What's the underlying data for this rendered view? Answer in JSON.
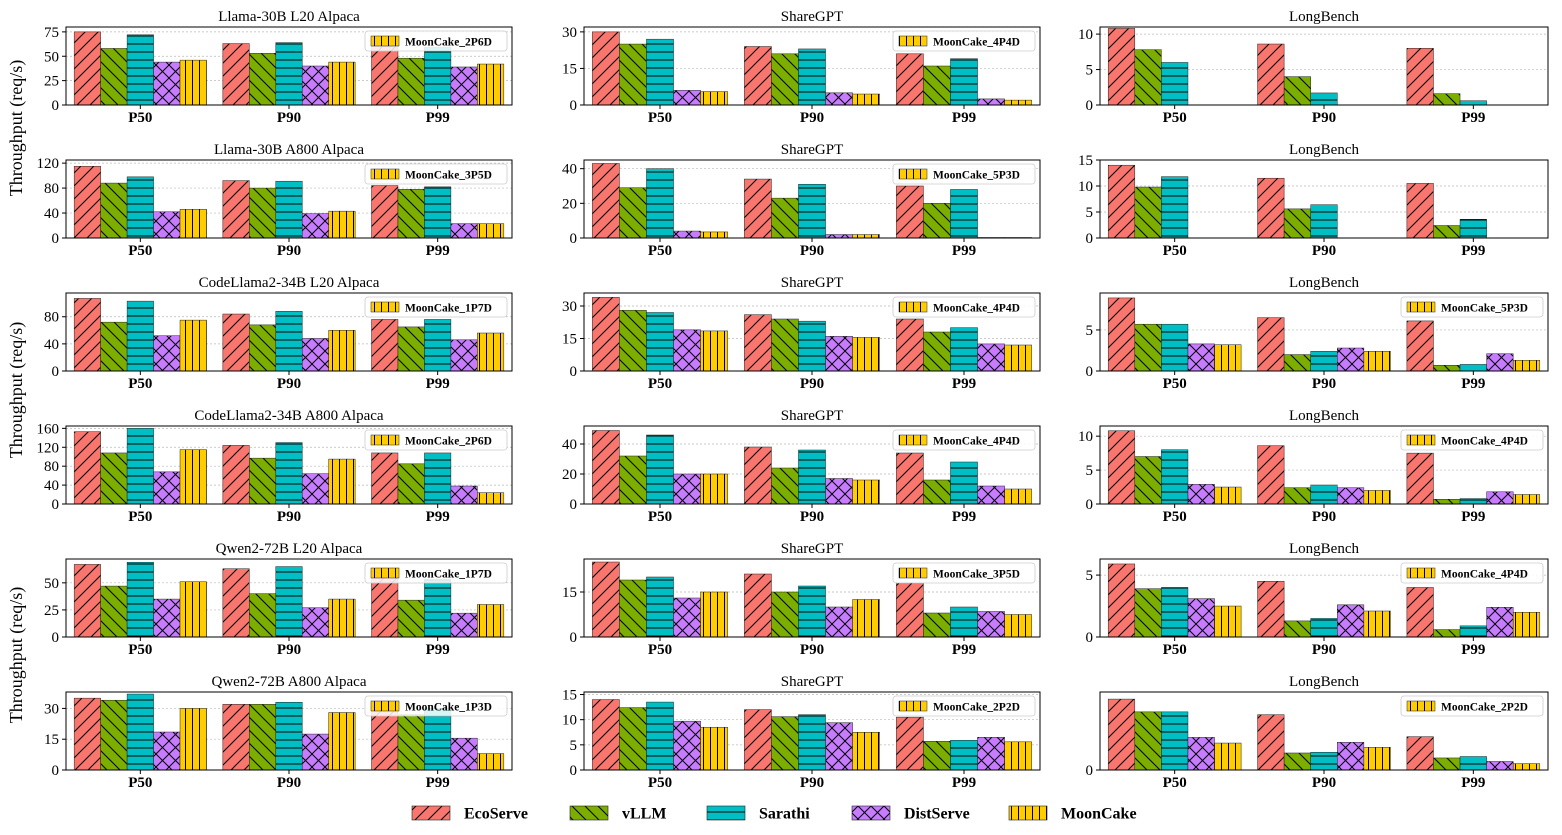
{
  "series_names": [
    "EcoServe",
    "vLLM",
    "Sarathi",
    "DistServe",
    "MoonCake"
  ],
  "colors": {
    "EcoServe": "#f8766d",
    "vLLM": "#7cae00",
    "Sarathi": "#00bfc4",
    "DistServe": "#c77cff",
    "MoonCake": "#ffcc00"
  },
  "ylabel": "Throughput (req/s)",
  "chart_data": [
    {
      "type": "bar",
      "title": "Llama-30B L20 Alpaca",
      "categories": [
        "P50",
        "P90",
        "P99"
      ],
      "ylim": [
        0,
        80
      ],
      "yticks": [
        0,
        25,
        50,
        75
      ],
      "legend": "MoonCake_2P6D",
      "series": [
        {
          "name": "EcoServe",
          "values": [
            75,
            63,
            60
          ]
        },
        {
          "name": "vLLM",
          "values": [
            58,
            53,
            48
          ]
        },
        {
          "name": "Sarathi",
          "values": [
            72,
            64,
            59
          ]
        },
        {
          "name": "DistServe",
          "values": [
            44,
            40,
            39
          ]
        },
        {
          "name": "MoonCake",
          "values": [
            46,
            44,
            42
          ]
        }
      ]
    },
    {
      "type": "bar",
      "title": "ShareGPT",
      "categories": [
        "P50",
        "P90",
        "P99"
      ],
      "ylim": [
        0,
        32
      ],
      "yticks": [
        0,
        15,
        30
      ],
      "legend": "MoonCake_4P4D",
      "series": [
        {
          "name": "EcoServe",
          "values": [
            30,
            24,
            21
          ]
        },
        {
          "name": "vLLM",
          "values": [
            25,
            21,
            16
          ]
        },
        {
          "name": "Sarathi",
          "values": [
            27,
            23,
            19
          ]
        },
        {
          "name": "DistServe",
          "values": [
            6,
            5,
            2.5
          ]
        },
        {
          "name": "MoonCake",
          "values": [
            5.5,
            4.5,
            2
          ]
        }
      ]
    },
    {
      "type": "bar",
      "title": "LongBench",
      "categories": [
        "P50",
        "P90",
        "P99"
      ],
      "ylim": [
        0,
        11
      ],
      "yticks": [
        0,
        5,
        10
      ],
      "legend": "",
      "series": [
        {
          "name": "EcoServe",
          "values": [
            10.8,
            8.6,
            8
          ]
        },
        {
          "name": "vLLM",
          "values": [
            7.8,
            4,
            1.6
          ]
        },
        {
          "name": "Sarathi",
          "values": [
            6,
            1.7,
            0.6
          ]
        },
        {
          "name": "DistServe",
          "values": [
            0,
            0,
            0
          ]
        },
        {
          "name": "MoonCake",
          "values": [
            0,
            0,
            0
          ]
        }
      ]
    },
    {
      "type": "bar",
      "title": "Llama-30B A800 Alpaca",
      "categories": [
        "P50",
        "P90",
        "P99"
      ],
      "ylim": [
        0,
        125
      ],
      "yticks": [
        0,
        40,
        80,
        120
      ],
      "legend": "MoonCake_3P5D",
      "series": [
        {
          "name": "EcoServe",
          "values": [
            115,
            92,
            84
          ]
        },
        {
          "name": "vLLM",
          "values": [
            88,
            80,
            78
          ]
        },
        {
          "name": "Sarathi",
          "values": [
            98,
            91,
            82
          ]
        },
        {
          "name": "DistServe",
          "values": [
            42,
            39,
            23
          ]
        },
        {
          "name": "MoonCake",
          "values": [
            46,
            43,
            23
          ]
        }
      ]
    },
    {
      "type": "bar",
      "title": "ShareGPT",
      "categories": [
        "P50",
        "P90",
        "P99"
      ],
      "ylim": [
        0,
        45
      ],
      "yticks": [
        0,
        20,
        40
      ],
      "legend": "MoonCake_5P3D",
      "series": [
        {
          "name": "EcoServe",
          "values": [
            43,
            34,
            30
          ]
        },
        {
          "name": "vLLM",
          "values": [
            29,
            23,
            20
          ]
        },
        {
          "name": "Sarathi",
          "values": [
            40,
            31,
            28
          ]
        },
        {
          "name": "DistServe",
          "values": [
            4,
            2,
            0.3
          ]
        },
        {
          "name": "MoonCake",
          "values": [
            3.5,
            2,
            0.3
          ]
        }
      ]
    },
    {
      "type": "bar",
      "title": "LongBench",
      "categories": [
        "P50",
        "P90",
        "P99"
      ],
      "ylim": [
        0,
        15
      ],
      "yticks": [
        0,
        5,
        10,
        15
      ],
      "legend": "",
      "series": [
        {
          "name": "EcoServe",
          "values": [
            14,
            11.5,
            10.5
          ]
        },
        {
          "name": "vLLM",
          "values": [
            9.8,
            5.6,
            2.4
          ]
        },
        {
          "name": "Sarathi",
          "values": [
            11.8,
            6.4,
            3.6
          ]
        },
        {
          "name": "DistServe",
          "values": [
            0,
            0,
            0
          ]
        },
        {
          "name": "MoonCake",
          "values": [
            0,
            0,
            0
          ]
        }
      ]
    },
    {
      "type": "bar",
      "title": "CodeLlama2-34B L20 Alpaca",
      "categories": [
        "P50",
        "P90",
        "P99"
      ],
      "ylim": [
        0,
        115
      ],
      "yticks": [
        0,
        40,
        80
      ],
      "legend": "MoonCake_1P7D",
      "series": [
        {
          "name": "EcoServe",
          "values": [
            107,
            84,
            76
          ]
        },
        {
          "name": "vLLM",
          "values": [
            72,
            68,
            65
          ]
        },
        {
          "name": "Sarathi",
          "values": [
            103,
            88,
            76
          ]
        },
        {
          "name": "DistServe",
          "values": [
            52,
            48,
            46
          ]
        },
        {
          "name": "MoonCake",
          "values": [
            75,
            60,
            56
          ]
        }
      ]
    },
    {
      "type": "bar",
      "title": "ShareGPT",
      "categories": [
        "P50",
        "P90",
        "P99"
      ],
      "ylim": [
        0,
        36
      ],
      "yticks": [
        0,
        15,
        30
      ],
      "legend": "MoonCake_4P4D",
      "series": [
        {
          "name": "EcoServe",
          "values": [
            34,
            26,
            24
          ]
        },
        {
          "name": "vLLM",
          "values": [
            28,
            24,
            18
          ]
        },
        {
          "name": "Sarathi",
          "values": [
            27,
            23,
            20
          ]
        },
        {
          "name": "DistServe",
          "values": [
            19,
            16,
            12.5
          ]
        },
        {
          "name": "MoonCake",
          "values": [
            18.5,
            15.5,
            12
          ]
        }
      ]
    },
    {
      "type": "bar",
      "title": "LongBench",
      "categories": [
        "P50",
        "P90",
        "P99"
      ],
      "ylim": [
        0,
        9.5
      ],
      "yticks": [
        0,
        5
      ],
      "legend": "MoonCake_5P3D",
      "series": [
        {
          "name": "EcoServe",
          "values": [
            8.9,
            6.5,
            6.1
          ]
        },
        {
          "name": "vLLM",
          "values": [
            5.7,
            2,
            0.7
          ]
        },
        {
          "name": "Sarathi",
          "values": [
            5.7,
            2.4,
            0.8
          ]
        },
        {
          "name": "DistServe",
          "values": [
            3.3,
            2.8,
            2.1
          ]
        },
        {
          "name": "MoonCake",
          "values": [
            3.2,
            2.4,
            1.3
          ]
        }
      ]
    },
    {
      "type": "bar",
      "title": "CodeLlama2-34B A800 Alpaca",
      "categories": [
        "P50",
        "P90",
        "P99"
      ],
      "ylim": [
        0,
        165
      ],
      "yticks": [
        0,
        40,
        80,
        120,
        160
      ],
      "legend": "MoonCake_2P6D",
      "series": [
        {
          "name": "EcoServe",
          "values": [
            153,
            124,
            108
          ]
        },
        {
          "name": "vLLM",
          "values": [
            108,
            97,
            85
          ]
        },
        {
          "name": "Sarathi",
          "values": [
            160,
            130,
            108
          ]
        },
        {
          "name": "DistServe",
          "values": [
            68,
            64,
            38
          ]
        },
        {
          "name": "MoonCake",
          "values": [
            115,
            95,
            24
          ]
        }
      ]
    },
    {
      "type": "bar",
      "title": "ShareGPT",
      "categories": [
        "P50",
        "P90",
        "P99"
      ],
      "ylim": [
        0,
        52
      ],
      "yticks": [
        0,
        20,
        40
      ],
      "legend": "MoonCake_4P4D",
      "series": [
        {
          "name": "EcoServe",
          "values": [
            49,
            38,
            34
          ]
        },
        {
          "name": "vLLM",
          "values": [
            32,
            24,
            16
          ]
        },
        {
          "name": "Sarathi",
          "values": [
            46,
            36,
            28
          ]
        },
        {
          "name": "DistServe",
          "values": [
            20,
            17,
            12
          ]
        },
        {
          "name": "MoonCake",
          "values": [
            20,
            16,
            10
          ]
        }
      ]
    },
    {
      "type": "bar",
      "title": "LongBench",
      "categories": [
        "P50",
        "P90",
        "P99"
      ],
      "ylim": [
        0,
        11.5
      ],
      "yticks": [
        0,
        5,
        10
      ],
      "legend": "MoonCake_4P4D",
      "series": [
        {
          "name": "EcoServe",
          "values": [
            10.8,
            8.6,
            7.5
          ]
        },
        {
          "name": "vLLM",
          "values": [
            7,
            2.4,
            0.7
          ]
        },
        {
          "name": "Sarathi",
          "values": [
            8,
            2.8,
            0.8
          ]
        },
        {
          "name": "DistServe",
          "values": [
            2.9,
            2.4,
            1.8
          ]
        },
        {
          "name": "MoonCake",
          "values": [
            2.5,
            2,
            1.4
          ]
        }
      ]
    },
    {
      "type": "bar",
      "title": "Qwen2-72B L20 Alpaca",
      "categories": [
        "P50",
        "P90",
        "P99"
      ],
      "ylim": [
        0,
        72
      ],
      "yticks": [
        0,
        25,
        50
      ],
      "legend": "MoonCake_1P7D",
      "series": [
        {
          "name": "EcoServe",
          "values": [
            67,
            63,
            55
          ]
        },
        {
          "name": "vLLM",
          "values": [
            47,
            40,
            34
          ]
        },
        {
          "name": "Sarathi",
          "values": [
            69,
            65,
            53
          ]
        },
        {
          "name": "DistServe",
          "values": [
            35,
            27,
            22
          ]
        },
        {
          "name": "MoonCake",
          "values": [
            51,
            35,
            30
          ]
        }
      ]
    },
    {
      "type": "bar",
      "title": "ShareGPT",
      "categories": [
        "P50",
        "P90",
        "P99"
      ],
      "ylim": [
        0,
        26
      ],
      "yticks": [
        0,
        15
      ],
      "legend": "MoonCake_3P5D",
      "series": [
        {
          "name": "EcoServe",
          "values": [
            25,
            21,
            18
          ]
        },
        {
          "name": "vLLM",
          "values": [
            19,
            15,
            8
          ]
        },
        {
          "name": "Sarathi",
          "values": [
            20,
            17,
            10
          ]
        },
        {
          "name": "DistServe",
          "values": [
            13,
            10,
            8.5
          ]
        },
        {
          "name": "MoonCake",
          "values": [
            15,
            12.5,
            7.5
          ]
        }
      ]
    },
    {
      "type": "bar",
      "title": "LongBench",
      "categories": [
        "P50",
        "P90",
        "P99"
      ],
      "ylim": [
        0,
        6.3
      ],
      "yticks": [
        0,
        5
      ],
      "legend": "MoonCake_4P4D",
      "series": [
        {
          "name": "EcoServe",
          "values": [
            5.9,
            4.5,
            4
          ]
        },
        {
          "name": "vLLM",
          "values": [
            3.9,
            1.3,
            0.6
          ]
        },
        {
          "name": "Sarathi",
          "values": [
            4,
            1.5,
            0.9
          ]
        },
        {
          "name": "DistServe",
          "values": [
            3.1,
            2.6,
            2.4
          ]
        },
        {
          "name": "MoonCake",
          "values": [
            2.5,
            2.1,
            2
          ]
        }
      ]
    },
    {
      "type": "bar",
      "title": "Qwen2-72B A800 Alpaca",
      "categories": [
        "P50",
        "P90",
        "P99"
      ],
      "ylim": [
        0,
        38
      ],
      "yticks": [
        0,
        15,
        30
      ],
      "legend": "MoonCake_1P3D",
      "series": [
        {
          "name": "EcoServe",
          "values": [
            35,
            32,
            29
          ]
        },
        {
          "name": "vLLM",
          "values": [
            34,
            32,
            27
          ]
        },
        {
          "name": "Sarathi",
          "values": [
            37,
            33,
            30
          ]
        },
        {
          "name": "DistServe",
          "values": [
            18.5,
            17.5,
            15.5
          ]
        },
        {
          "name": "MoonCake",
          "values": [
            30,
            28,
            8
          ]
        }
      ]
    },
    {
      "type": "bar",
      "title": "ShareGPT",
      "categories": [
        "P50",
        "P90",
        "P99"
      ],
      "ylim": [
        0,
        15.5
      ],
      "yticks": [
        0,
        5,
        10,
        15
      ],
      "legend": "MoonCake_2P2D",
      "series": [
        {
          "name": "EcoServe",
          "values": [
            14,
            12,
            10.5
          ]
        },
        {
          "name": "vLLM",
          "values": [
            12.4,
            10.6,
            5.7
          ]
        },
        {
          "name": "Sarathi",
          "values": [
            13.5,
            11,
            5.9
          ]
        },
        {
          "name": "DistServe",
          "values": [
            9.7,
            9.4,
            6.5
          ]
        },
        {
          "name": "MoonCake",
          "values": [
            8.5,
            7.5,
            5.6
          ]
        }
      ]
    },
    {
      "type": "bar",
      "title": "LongBench",
      "categories": [
        "P50",
        "P90",
        "P99"
      ],
      "ylim": [
        0,
        1.1
      ],
      "yticks": [
        0
      ],
      "legend": "MoonCake_2P2D",
      "series": [
        {
          "name": "EcoServe",
          "values": [
            1.0,
            0.78,
            0.47
          ]
        },
        {
          "name": "vLLM",
          "values": [
            0.82,
            0.24,
            0.17
          ]
        },
        {
          "name": "Sarathi",
          "values": [
            0.82,
            0.25,
            0.19
          ]
        },
        {
          "name": "DistServe",
          "values": [
            0.46,
            0.39,
            0.12
          ]
        },
        {
          "name": "MoonCake",
          "values": [
            0.38,
            0.32,
            0.09
          ]
        }
      ]
    }
  ]
}
